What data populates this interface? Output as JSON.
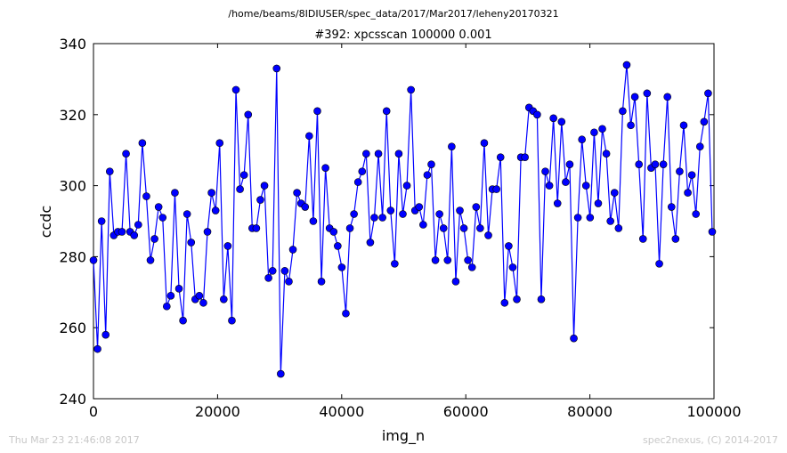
{
  "header": {
    "path": "/home/beams/8IDIUSER/spec_data/2017/Mar2017/leheny20170321"
  },
  "footer": {
    "timestamp": "Thu Mar 23 21:46:08 2017",
    "credit": "spec2nexus, (C) 2014-2017"
  },
  "chart_data": {
    "type": "line",
    "title": "#392: xpcsscan 100000 0.001",
    "xlabel": "img_n",
    "ylabel": "ccdc",
    "xlim": [
      0,
      100000
    ],
    "ylim": [
      240,
      340
    ],
    "xticks": [
      0,
      20000,
      40000,
      60000,
      80000,
      100000
    ],
    "yticks": [
      240,
      260,
      280,
      300,
      320,
      340
    ],
    "grid": false,
    "line_color": "#0000ff",
    "marker": "circle",
    "x_start": 0,
    "x_step": 656,
    "y": [
      279,
      254,
      290,
      258,
      304,
      286,
      287,
      287,
      309,
      287,
      286,
      289,
      312,
      297,
      279,
      285,
      294,
      291,
      266,
      269,
      298,
      271,
      262,
      292,
      284,
      268,
      269,
      267,
      287,
      298,
      293,
      312,
      268,
      283,
      262,
      327,
      299,
      303,
      320,
      288,
      288,
      296,
      300,
      274,
      276,
      333,
      247,
      276,
      273,
      282,
      298,
      295,
      294,
      314,
      290,
      321,
      273,
      305,
      288,
      287,
      283,
      277,
      264,
      288,
      292,
      301,
      304,
      309,
      284,
      291,
      309,
      291,
      321,
      293,
      278,
      309,
      292,
      300,
      327,
      293,
      294,
      289,
      303,
      306,
      279,
      292,
      288,
      279,
      311,
      273,
      293,
      288,
      279,
      277,
      294,
      288,
      312,
      286,
      299,
      299,
      308,
      267,
      283,
      277,
      268,
      308,
      308,
      322,
      321,
      320,
      268,
      304,
      300,
      319,
      295,
      318,
      301,
      306,
      257,
      291,
      313,
      300,
      291,
      315,
      295,
      316,
      309,
      290,
      298,
      288,
      321,
      334,
      317,
      325,
      306,
      285,
      326,
      305,
      306,
      278,
      306,
      325,
      294,
      285,
      304,
      317,
      298,
      303,
      292,
      311,
      318,
      326,
      287
    ]
  }
}
